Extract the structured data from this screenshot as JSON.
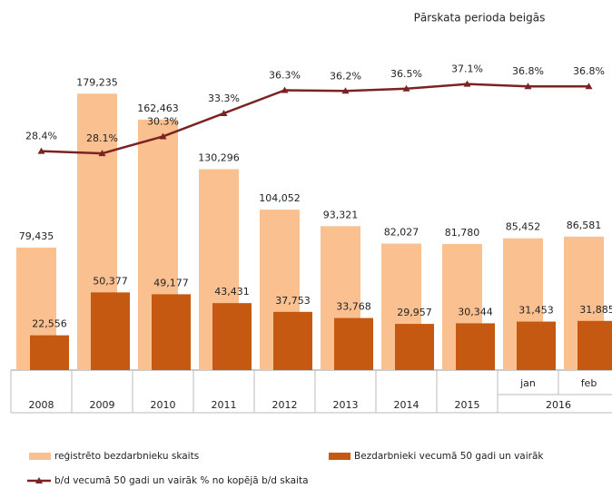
{
  "chart_data": {
    "type": "bar",
    "title": "Pārskata perioda beigās",
    "categories": [
      "2008",
      "2009",
      "2010",
      "2011",
      "2012",
      "2013",
      "2014",
      "2015",
      "jan",
      "feb"
    ],
    "group_label": "2016",
    "ylim": [
      0,
      200000
    ],
    "y2lim": [
      0,
      40
    ],
    "series": [
      {
        "name": "reģistrēto bezdarbnieku skaits",
        "type": "bar",
        "color": "#fac090",
        "values": [
          79435,
          179235,
          162463,
          130296,
          104052,
          93321,
          82027,
          81780,
          85452,
          86581
        ],
        "value_labels": [
          "79,435",
          "179,235",
          "162,463",
          "130,296",
          "104,052",
          "93,321",
          "82,027",
          "81,780",
          "85,452",
          "86,581"
        ]
      },
      {
        "name": "Bezdarbnieki vecumā 50 gadi un vairāk",
        "type": "bar",
        "color": "#c65911",
        "values": [
          22556,
          50377,
          49177,
          43431,
          37753,
          33768,
          29957,
          30344,
          31453,
          31885
        ],
        "value_labels": [
          "22,556",
          "50,377",
          "49,177",
          "43,431",
          "37,753",
          "33,768",
          "29,957",
          "30,344",
          "31,453",
          "31,885"
        ]
      },
      {
        "name": "b/d vecumā 50 gadi un vairāk % no kopējā b/d skaita",
        "type": "line",
        "axis": "y2",
        "color": "#7b2323",
        "values": [
          28.4,
          28.1,
          30.3,
          33.3,
          36.3,
          36.2,
          36.5,
          37.1,
          36.8,
          36.8
        ],
        "value_labels": [
          "28.4%",
          "28.1%",
          "30.3%",
          "33.3%",
          "36.3%",
          "36.2%",
          "36.5%",
          "37.1%",
          "36.8%",
          "36.8%"
        ]
      }
    ]
  }
}
